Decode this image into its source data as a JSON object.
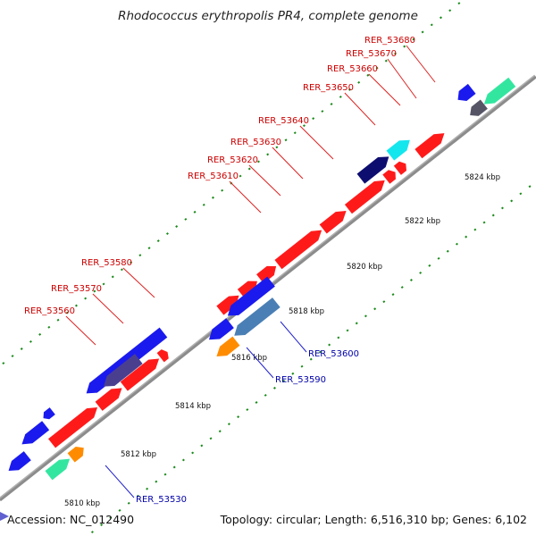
{
  "title": "Rhodococcus erythropolis PR4, complete genome",
  "footer": {
    "accession": "Accession: NC_012490",
    "topology": "Topology: circular; Length: 6,516,310 bp; Genes: 6,102"
  },
  "colors": {
    "backbone": "#8c8c8c",
    "tick": "#1a8a1a",
    "forward_gene": "#ff1a1a",
    "reverse_gene": "#1a1aee",
    "dark_navy": "#0d0d70",
    "slate_purple": "#4a3f8f",
    "cyan": "#14e6ee",
    "steel_blue": "#4a7fb5",
    "orange": "#ff8c00",
    "mint": "#33e6a0",
    "dark_gray": "#555566",
    "label_forward": "#cc0000",
    "label_reverse": "#0000aa"
  },
  "scale_labels": [
    "5810 kbp",
    "5812 kbp",
    "5814 kbp",
    "5816 kbp",
    "5818 kbp",
    "5820 kbp",
    "5822 kbp",
    "5824 kbp"
  ],
  "gene_labels_forward": [
    "RER_53560",
    "RER_53570",
    "RER_53580",
    "RER_53610",
    "RER_53620",
    "RER_53630",
    "RER_53640",
    "RER_53650",
    "RER_53660",
    "RER_53670",
    "RER_53680"
  ],
  "gene_labels_reverse": [
    "RER_53530",
    "RER_53590",
    "RER_53600"
  ],
  "icons": [
    "strand-arrow-icon"
  ]
}
